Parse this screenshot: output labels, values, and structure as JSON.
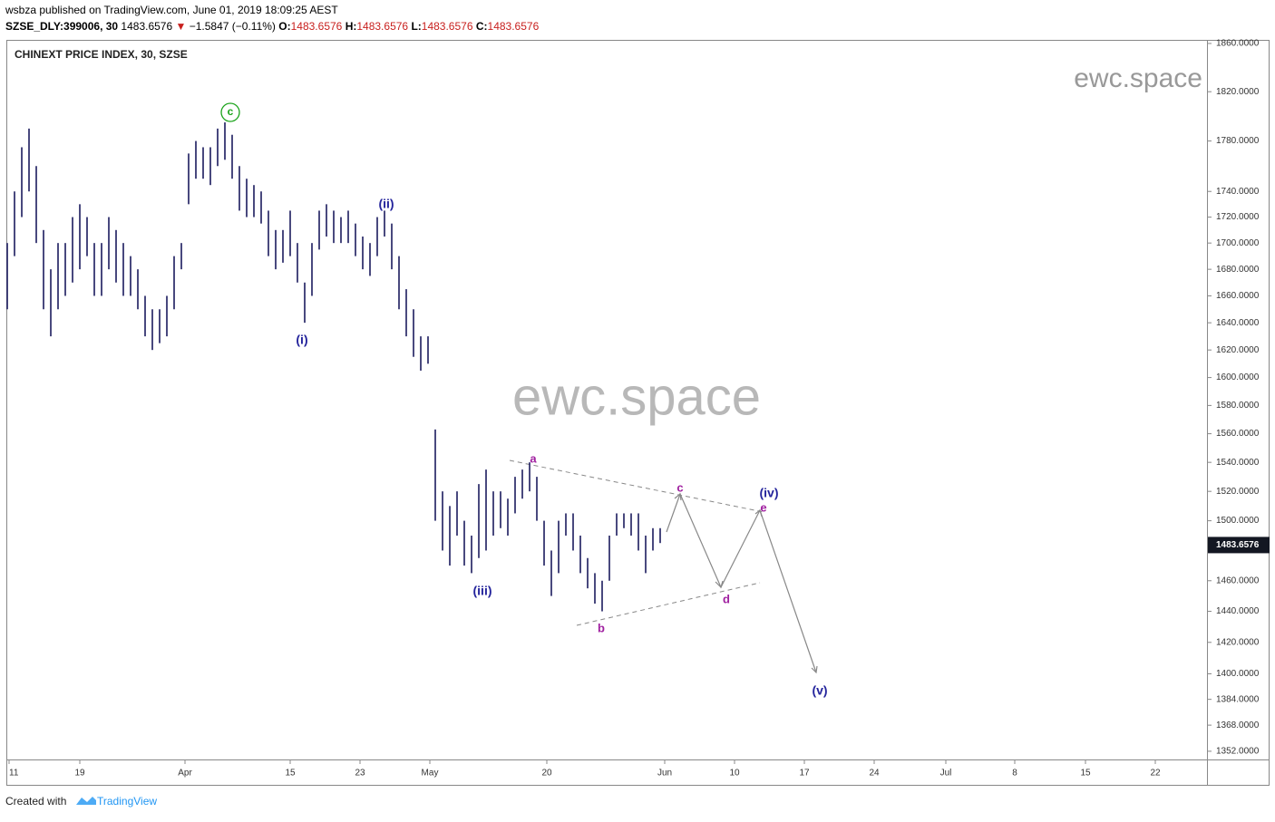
{
  "header": {
    "publisher": "wsbza",
    "published": "published on TradingView.com, June 01, 2019 18:09:25 AEST",
    "symbol": "SZSE_DLY:399006, 30",
    "last": "1483.6576",
    "arrow": "▼",
    "change": "−1.5847 (−0.11%)",
    "ohlc": [
      {
        "label": "O:",
        "value": "1483.6576"
      },
      {
        "label": "H:",
        "value": "1483.6576"
      },
      {
        "label": "L:",
        "value": "1483.6576"
      },
      {
        "label": "C:",
        "value": "1483.6576"
      }
    ]
  },
  "chart_data": {
    "type": "ohlc",
    "title": "CHINEXT PRICE INDEX, 30, SZSE",
    "watermark": "ewc.space",
    "color": "#1b1b5e",
    "log_scale": true,
    "lows": [
      1650,
      1690,
      1720,
      1740,
      1700,
      1650,
      1630,
      1650,
      1660,
      1670,
      1680,
      1690,
      1660,
      1660,
      1680,
      1670,
      1660,
      1660,
      1650,
      1630,
      1620,
      1625,
      1630,
      1650,
      1680,
      1730,
      1750,
      1750,
      1745,
      1760,
      1765,
      1750,
      1725,
      1720,
      1720,
      1715,
      1690,
      1680,
      1685,
      1690,
      1670,
      1640,
      1660,
      1695,
      1705,
      1700,
      1700,
      1700,
      1690,
      1680,
      1675,
      1690,
      1705,
      1680,
      1650,
      1630,
      1615,
      1605,
      1610,
      1500,
      1480,
      1470,
      1490,
      1470,
      1465,
      1475,
      1480,
      1490,
      1495,
      1490,
      1505,
      1515,
      1520,
      1500,
      1470,
      1450,
      1465,
      1490,
      1480,
      1465,
      1455,
      1445,
      1440,
      1460,
      1490,
      1495,
      1490,
      1480,
      1465,
      1480,
      1485
    ],
    "highs": [
      1700,
      1740,
      1775,
      1790,
      1760,
      1710,
      1680,
      1700,
      1700,
      1720,
      1730,
      1720,
      1700,
      1700,
      1720,
      1710,
      1700,
      1690,
      1680,
      1660,
      1650,
      1650,
      1660,
      1690,
      1700,
      1770,
      1780,
      1775,
      1775,
      1790,
      1795,
      1785,
      1760,
      1750,
      1745,
      1740,
      1725,
      1710,
      1710,
      1725,
      1700,
      1670,
      1700,
      1725,
      1730,
      1725,
      1720,
      1725,
      1715,
      1705,
      1700,
      1720,
      1725,
      1715,
      1690,
      1665,
      1650,
      1630,
      1630,
      1563,
      1520,
      1510,
      1520,
      1500,
      1490,
      1525,
      1535,
      1520,
      1520,
      1515,
      1530,
      1535,
      1540,
      1530,
      1500,
      1480,
      1500,
      1505,
      1505,
      1490,
      1475,
      1465,
      1460,
      1490,
      1505,
      1505,
      1505,
      1505,
      1490,
      1495,
      1495
    ],
    "last_value": 1483.6576,
    "last_label": "1483.6576",
    "ylim": [
      1347,
      1863
    ],
    "yticks": [
      {
        "value": 1860,
        "label": "1860.0000"
      },
      {
        "value": 1820,
        "label": "1820.0000"
      },
      {
        "value": 1780,
        "label": "1780.0000"
      },
      {
        "value": 1740,
        "label": "1740.0000"
      },
      {
        "value": 1720,
        "label": "1720.0000"
      },
      {
        "value": 1700,
        "label": "1700.0000"
      },
      {
        "value": 1680,
        "label": "1680.0000"
      },
      {
        "value": 1660,
        "label": "1660.0000"
      },
      {
        "value": 1640,
        "label": "1640.0000"
      },
      {
        "value": 1620,
        "label": "1620.0000"
      },
      {
        "value": 1600,
        "label": "1600.0000"
      },
      {
        "value": 1580,
        "label": "1580.0000"
      },
      {
        "value": 1560,
        "label": "1560.0000"
      },
      {
        "value": 1540,
        "label": "1540.0000"
      },
      {
        "value": 1520,
        "label": "1520.0000"
      },
      {
        "value": 1500,
        "label": "1500.0000"
      },
      {
        "value": 1460,
        "label": "1460.0000"
      },
      {
        "value": 1440,
        "label": "1440.0000"
      },
      {
        "value": 1420,
        "label": "1420.0000"
      },
      {
        "value": 1400,
        "label": "1400.0000"
      },
      {
        "value": 1384,
        "label": "1384.0000"
      },
      {
        "value": 1368,
        "label": "1368.0000"
      },
      {
        "value": 1352,
        "label": "1352.0000"
      }
    ],
    "xticks": [
      "11",
      "19",
      "Apr",
      "15",
      "23",
      "May",
      "20",
      "Jun",
      "10",
      "17",
      "24",
      "Jul",
      "8",
      "15",
      "22"
    ],
    "annotations": [
      {
        "text": "c",
        "color": "#1aa31a"
      },
      {
        "text": "(ii)",
        "color": "#24249c"
      },
      {
        "text": "(i)",
        "color": "#24249c"
      },
      {
        "text": "(iii)",
        "color": "#24249c"
      },
      {
        "text": "a",
        "color": "#a020a0"
      },
      {
        "text": "b",
        "color": "#a020a0"
      },
      {
        "text": "c",
        "color": "#a020a0"
      },
      {
        "text": "d",
        "color": "#a020a0"
      },
      {
        "text": "(iv)",
        "color": "#24249c"
      },
      {
        "text": "e",
        "color": "#a020a0"
      },
      {
        "text": "(v)",
        "color": "#24249c"
      }
    ]
  },
  "footer": {
    "created": "Created with",
    "brand": "TradingView"
  }
}
